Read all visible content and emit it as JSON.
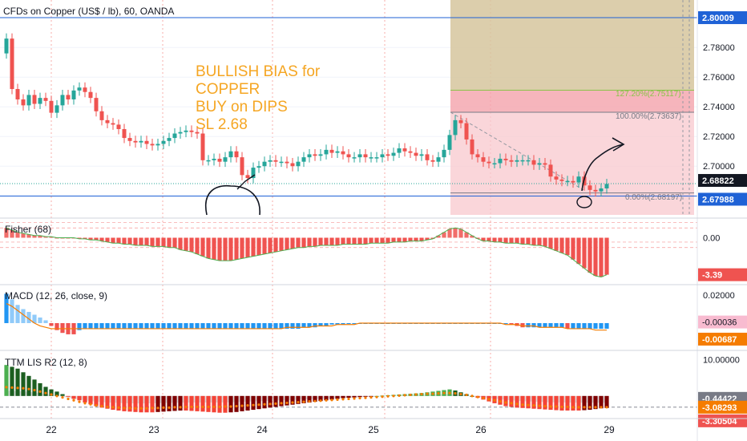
{
  "chart_data": {
    "type": "candlestick",
    "title": "CFDs on Copper (US$ / lb), 60, OANDA",
    "annotation": [
      "BULLISH BIAS for",
      "COPPER",
      "BUY on DIPS",
      "SL 2.68"
    ],
    "x_ticks": [
      "22",
      "23",
      "24",
      "25",
      "26",
      "29"
    ],
    "colors": {
      "up": "#26a69a",
      "down": "#ef5350",
      "annotation": "#f5a623",
      "axis_blue": "#1f62d6",
      "label_dark": "#131722",
      "macd_blue": "#2196f3",
      "orange": "#f57c00"
    },
    "price_panel": {
      "ylim": [
        2.665,
        2.812
      ],
      "y_ticks": [
        "2.78000",
        "2.76000",
        "2.74000",
        "2.72000",
        "2.70000"
      ],
      "y_tick_values": [
        2.78,
        2.76,
        2.74,
        2.72,
        2.7
      ],
      "labels": [
        {
          "text": "2.80009",
          "value": 2.80009,
          "color": "#1f62d6"
        },
        {
          "text": "2.68822",
          "value": 2.68822,
          "color": "#131722"
        },
        {
          "text": "2.67988",
          "value": 2.67988,
          "color": "#1f62d6"
        }
      ],
      "close_series": [
        2.786,
        2.752,
        2.745,
        2.741,
        2.748,
        2.742,
        2.746,
        2.744,
        2.736,
        2.741,
        2.748,
        2.745,
        2.751,
        2.753,
        2.75,
        2.746,
        2.737,
        2.731,
        2.729,
        2.728,
        2.725,
        2.719,
        2.717,
        2.716,
        2.717,
        2.715,
        2.714,
        2.715,
        2.717,
        2.719,
        2.722,
        2.723,
        2.724,
        2.723,
        2.722,
        2.704,
        2.704,
        2.705,
        2.703,
        2.706,
        2.71,
        2.706,
        2.694,
        2.692,
        2.699,
        2.7,
        2.703,
        2.704,
        2.703,
        2.703,
        2.702,
        2.7,
        2.703,
        2.706,
        2.708,
        2.707,
        2.708,
        2.711,
        2.709,
        2.71,
        2.708,
        2.706,
        2.706,
        2.708,
        2.706,
        2.706,
        2.706,
        2.708,
        2.707,
        2.709,
        2.712,
        2.71,
        2.709,
        2.707,
        2.708,
        2.704,
        2.703,
        2.706,
        2.711,
        2.721,
        2.731,
        2.729,
        2.718,
        2.708,
        2.706,
        2.703,
        2.702,
        2.702,
        2.705,
        2.704,
        2.703,
        2.704,
        2.704,
        2.704,
        2.701,
        2.702,
        2.701,
        2.693,
        2.691,
        2.69,
        2.69,
        2.689,
        2.693,
        2.687,
        2.684,
        2.683,
        2.685,
        2.688
      ],
      "fib_labels": [
        {
          "text": "127.20%(2.75117)",
          "value": 2.75117
        },
        {
          "text": "100.00%(2.73637)",
          "value": 2.73637
        },
        {
          "text": "0.00%(2.68197)",
          "value": 2.68197
        }
      ]
    },
    "fisher_panel": {
      "name": "Fisher (68)",
      "ylim": [
        -4.3,
        1.8
      ],
      "y_ticks": [
        "0.00"
      ],
      "y_tick_values": [
        0
      ],
      "labels": [
        {
          "text": "-3.39",
          "value": -3.39,
          "color": "#ef5350"
        }
      ],
      "values": [
        0.9,
        0.7,
        0.5,
        0.4,
        0.3,
        0.2,
        0.2,
        0.1,
        0.1,
        0.0,
        0.0,
        0.0,
        0.0,
        -0.1,
        -0.1,
        -0.2,
        -0.2,
        -0.3,
        -0.4,
        -0.5,
        -0.5,
        -0.6,
        -0.6,
        -0.7,
        -0.7,
        -0.7,
        -0.8,
        -0.8,
        -0.8,
        -0.9,
        -0.9,
        -1.1,
        -1.2,
        -1.3,
        -1.5,
        -1.7,
        -1.9,
        -2.0,
        -2.1,
        -2.1,
        -2.1,
        -2.0,
        -1.9,
        -1.8,
        -1.7,
        -1.6,
        -1.5,
        -1.4,
        -1.3,
        -1.2,
        -1.1,
        -1.0,
        -0.9,
        -0.9,
        -0.8,
        -0.8,
        -0.7,
        -0.7,
        -0.7,
        -0.7,
        -0.6,
        -0.6,
        -0.6,
        -0.6,
        -0.6,
        -0.5,
        -0.5,
        -0.5,
        -0.5,
        -0.4,
        -0.4,
        -0.4,
        -0.3,
        -0.3,
        -0.3,
        -0.2,
        -0.1,
        0.2,
        0.5,
        0.8,
        0.9,
        0.8,
        0.5,
        0.2,
        -0.1,
        -0.3,
        -0.3,
        -0.4,
        -0.4,
        -0.5,
        -0.5,
        -0.5,
        -0.6,
        -0.6,
        -0.7,
        -0.7,
        -0.8,
        -1.0,
        -1.2,
        -1.4,
        -1.6,
        -2.0,
        -2.4,
        -2.8,
        -3.2,
        -3.5,
        -3.6,
        -3.39
      ]
    },
    "macd_panel": {
      "name": "MACD (12, 26, close, 9)",
      "ylim": [
        -0.0195,
        0.0275
      ],
      "y_ticks": [
        "0.02000"
      ],
      "y_tick_values": [
        0.02
      ],
      "labels": [
        {
          "text": "-0.00036",
          "value": -0.00036,
          "color": "#f8bbd0"
        },
        {
          "text": "-0.00687",
          "value": -0.00687,
          "color": "#f57c00"
        }
      ],
      "histogram": [
        0.021,
        0.017,
        0.013,
        0.01,
        0.008,
        0.006,
        0.004,
        0.002,
        -0.002,
        -0.005,
        -0.007,
        -0.008,
        -0.008,
        -0.005,
        -0.004,
        -0.004,
        -0.004,
        -0.004,
        -0.004,
        -0.004,
        -0.004,
        -0.004,
        -0.004,
        -0.004,
        -0.004,
        -0.004,
        -0.004,
        -0.004,
        -0.004,
        -0.004,
        -0.004,
        -0.004,
        -0.004,
        -0.004,
        -0.004,
        -0.004,
        -0.004,
        -0.004,
        -0.004,
        -0.004,
        -0.004,
        -0.004,
        -0.004,
        -0.004,
        -0.004,
        -0.004,
        -0.004,
        -0.004,
        -0.004,
        -0.004,
        -0.004,
        -0.004,
        -0.004,
        -0.003,
        -0.003,
        -0.003,
        -0.002,
        -0.002,
        -0.001,
        -0.001,
        -0.001,
        0.0,
        0.0,
        0.0,
        0.0,
        0.0,
        0.0,
        0.0,
        0.0,
        0.0,
        0.0,
        0.0,
        0.0,
        0.0,
        0.0,
        0.0,
        0.0,
        0.0,
        0.0,
        0.0,
        0.0,
        0.0,
        0.0,
        0.0,
        0.0,
        0.0,
        0.0,
        0.0,
        0.0,
        0.0,
        -0.001,
        -0.002,
        -0.003,
        -0.003,
        -0.003,
        -0.003,
        -0.003,
        -0.003,
        -0.003,
        -0.003,
        -0.004,
        -0.004,
        -0.004,
        -0.004,
        -0.004,
        -0.004,
        -0.004,
        -0.004
      ],
      "signal": [
        0.014,
        0.012,
        0.009,
        0.006,
        0.003,
        0.0,
        -0.002,
        -0.003,
        -0.004,
        -0.004,
        -0.004,
        -0.004,
        -0.004,
        -0.004,
        -0.004,
        -0.004,
        -0.004,
        -0.004,
        -0.004,
        -0.004,
        -0.004,
        -0.004,
        -0.004,
        -0.004,
        -0.004,
        -0.004,
        -0.004,
        -0.004,
        -0.004,
        -0.004,
        -0.004,
        -0.004,
        -0.004,
        -0.004,
        -0.004,
        -0.004,
        -0.004,
        -0.004,
        -0.004,
        -0.004,
        -0.004,
        -0.004,
        -0.004,
        -0.004,
        -0.004,
        -0.004,
        -0.004,
        -0.004,
        -0.004,
        -0.004,
        -0.003,
        -0.003,
        -0.003,
        -0.003,
        -0.003,
        -0.002,
        -0.002,
        -0.002,
        -0.002,
        -0.001,
        -0.001,
        -0.001,
        -0.001,
        0.0,
        0.0,
        0.0,
        0.0,
        0.0,
        0.0,
        0.0,
        0.0,
        0.0,
        0.0,
        0.0,
        0.0,
        0.0,
        0.0,
        0.0,
        0.0,
        0.0,
        0.0,
        0.0,
        0.0,
        0.0,
        0.0,
        0.0,
        0.0,
        0.0,
        0.0,
        -0.001,
        -0.001,
        -0.001,
        -0.002,
        -0.002,
        -0.002,
        -0.003,
        -0.003,
        -0.003,
        -0.003,
        -0.003,
        -0.004,
        -0.004,
        -0.004,
        -0.004,
        -0.004,
        -0.005,
        -0.005,
        -0.005
      ]
    },
    "ttm_panel": {
      "name": "TTM LIS R2 (12, 8)",
      "ylim": [
        -6.2,
        12.5
      ],
      "y_ticks": [
        "10.00000"
      ],
      "y_tick_values": [
        10.0
      ],
      "labels": [
        {
          "text": "-0.44422",
          "value": -0.44422,
          "color": "#787b86"
        },
        {
          "text": "-3.08293",
          "value": -3.08293,
          "color": "#f57c00"
        },
        {
          "text": "-3.30504",
          "value": -3.30504,
          "color": "#ef5350"
        }
      ],
      "histogram": [
        8.5,
        8.0,
        7.5,
        6.5,
        5.5,
        4.5,
        3.5,
        2.5,
        1.8,
        1.2,
        0.5,
        -0.2,
        -0.8,
        -1.2,
        -1.8,
        -2.3,
        -2.8,
        -3.2,
        -3.5,
        -3.8,
        -4.0,
        -4.2,
        -4.3,
        -4.4,
        -4.5,
        -4.5,
        -4.5,
        -4.4,
        -4.3,
        -4.2,
        -4.1,
        -4.0,
        -4.0,
        -4.1,
        -4.2,
        -4.3,
        -4.4,
        -4.5,
        -4.6,
        -4.6,
        -4.5,
        -4.4,
        -4.2,
        -4.0,
        -3.8,
        -3.6,
        -3.4,
        -3.2,
        -3.0,
        -2.8,
        -2.6,
        -2.4,
        -2.2,
        -2.0,
        -1.8,
        -1.6,
        -1.4,
        -1.2,
        -1.0,
        -0.8,
        -0.6,
        -0.5,
        -0.4,
        -0.3,
        -0.2,
        -0.1,
        0.0,
        0.1,
        0.2,
        0.3,
        0.4,
        0.5,
        0.6,
        0.7,
        0.8,
        1.0,
        1.2,
        1.4,
        1.6,
        1.8,
        1.5,
        1.0,
        0.5,
        0.0,
        -0.5,
        -1.0,
        -1.5,
        -2.0,
        -2.4,
        -2.8,
        -3.0,
        -3.2,
        -3.3,
        -3.4,
        -3.5,
        -3.6,
        -3.7,
        -3.8,
        -3.9,
        -4.0,
        -4.0,
        -4.0,
        -4.0,
        -3.9,
        -3.8,
        -3.6,
        -3.4,
        -3.3
      ],
      "momentum": [
        2.4,
        2.3,
        2.2,
        2.1,
        1.9,
        1.6,
        1.2,
        0.8,
        0.4,
        0.0,
        -0.4,
        -0.8,
        -1.2,
        -1.6,
        -2.0,
        -2.3,
        -2.6,
        -2.8,
        -3.0,
        -3.1,
        -3.2,
        -3.3,
        -3.3,
        -3.4,
        -3.4,
        -3.4,
        -3.3,
        -3.3,
        -3.2,
        -3.2,
        -3.1,
        -3.1,
        -3.0,
        -3.0,
        -3.0,
        -3.0,
        -3.0,
        -3.0,
        -3.0,
        -2.9,
        -2.9,
        -2.8,
        -2.7,
        -2.6,
        -2.5,
        -2.4,
        -2.3,
        -2.2,
        -2.1,
        -2.0,
        -1.9,
        -1.8,
        -1.7,
        -1.6,
        -1.5,
        -1.4,
        -1.3,
        -1.2,
        -1.1,
        -1.0,
        -0.9,
        -0.8,
        -0.7,
        -0.6,
        -0.5,
        -0.4,
        -0.3,
        -0.2,
        -0.1,
        0.0,
        0.1,
        0.2,
        0.3,
        0.4,
        0.5,
        0.6,
        0.6,
        0.7,
        0.8,
        0.8,
        0.7,
        0.5,
        0.3,
        0.0,
        -0.3,
        -0.6,
        -0.9,
        -1.2,
        -1.5,
        -1.8,
        -2.0,
        -2.2,
        -2.4,
        -2.5,
        -2.6,
        -2.7,
        -2.8,
        -2.9,
        -2.9,
        -3.0,
        -3.0,
        -3.1,
        -3.1,
        -3.1,
        -3.1,
        -3.1,
        -3.1,
        -3.1
      ]
    }
  }
}
